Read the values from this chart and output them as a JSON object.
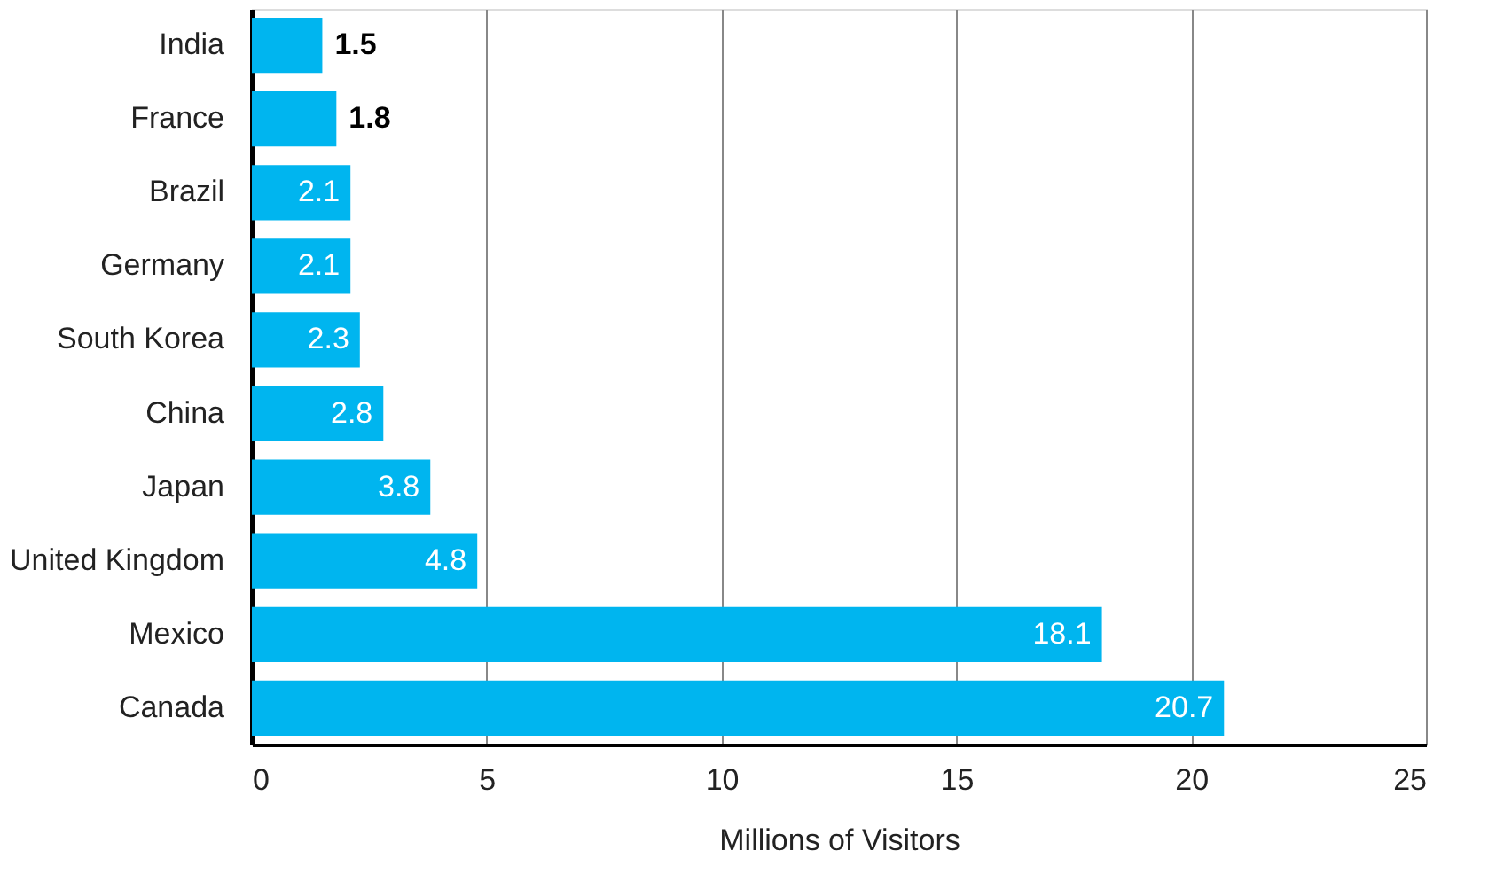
{
  "chart_data": {
    "type": "bar",
    "orientation": "horizontal",
    "xlabel": "Millions of Visitors",
    "categories": [
      "India",
      "France",
      "Brazil",
      "Germany",
      "South Korea",
      "China",
      "Japan",
      "United Kingdom",
      "Mexico",
      "Canada"
    ],
    "values": [
      1.5,
      1.8,
      2.1,
      2.1,
      2.3,
      2.8,
      3.8,
      4.8,
      18.1,
      20.7
    ],
    "color": "#00b5ef",
    "xlim": [
      0,
      25
    ],
    "xticks": [
      0,
      5,
      10,
      15,
      20,
      25
    ],
    "grid": "x",
    "data_labels": true
  }
}
